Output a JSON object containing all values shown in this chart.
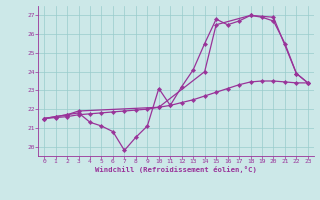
{
  "background_color": "#cce8e8",
  "line_color": "#993399",
  "grid_color": "#99cccc",
  "xlabel": "Windchill (Refroidissement éolien,°C)",
  "xlim": [
    -0.5,
    23.5
  ],
  "ylim": [
    19.5,
    27.5
  ],
  "yticks": [
    20,
    21,
    22,
    23,
    24,
    25,
    26,
    27
  ],
  "xticks": [
    0,
    1,
    2,
    3,
    4,
    5,
    6,
    7,
    8,
    9,
    10,
    11,
    12,
    13,
    14,
    15,
    16,
    17,
    18,
    19,
    20,
    21,
    22,
    23
  ],
  "line1_x": [
    0,
    1,
    2,
    3,
    4,
    5,
    6,
    7,
    8,
    9,
    10,
    11,
    12,
    13,
    14,
    15,
    16,
    17,
    18,
    19,
    20,
    21,
    22,
    23
  ],
  "line1_y": [
    21.5,
    21.6,
    21.7,
    21.8,
    21.3,
    21.1,
    20.8,
    19.8,
    20.5,
    21.1,
    23.1,
    22.2,
    23.2,
    24.1,
    25.5,
    26.8,
    26.5,
    26.7,
    27.0,
    26.9,
    26.7,
    25.5,
    23.9,
    23.4
  ],
  "line2_x": [
    0,
    1,
    2,
    3,
    10,
    14,
    15,
    18,
    20,
    22,
    23
  ],
  "line2_y": [
    21.5,
    21.6,
    21.7,
    21.9,
    22.1,
    24.0,
    26.5,
    27.0,
    26.9,
    23.9,
    23.4
  ],
  "line3_x": [
    0,
    1,
    2,
    3,
    4,
    5,
    6,
    7,
    8,
    9,
    10,
    11,
    12,
    13,
    14,
    15,
    16,
    17,
    18,
    19,
    20,
    21,
    22,
    23
  ],
  "line3_y": [
    21.5,
    21.55,
    21.6,
    21.7,
    21.75,
    21.8,
    21.85,
    21.9,
    21.95,
    22.0,
    22.1,
    22.2,
    22.35,
    22.5,
    22.7,
    22.9,
    23.1,
    23.3,
    23.45,
    23.5,
    23.5,
    23.45,
    23.4,
    23.4
  ]
}
